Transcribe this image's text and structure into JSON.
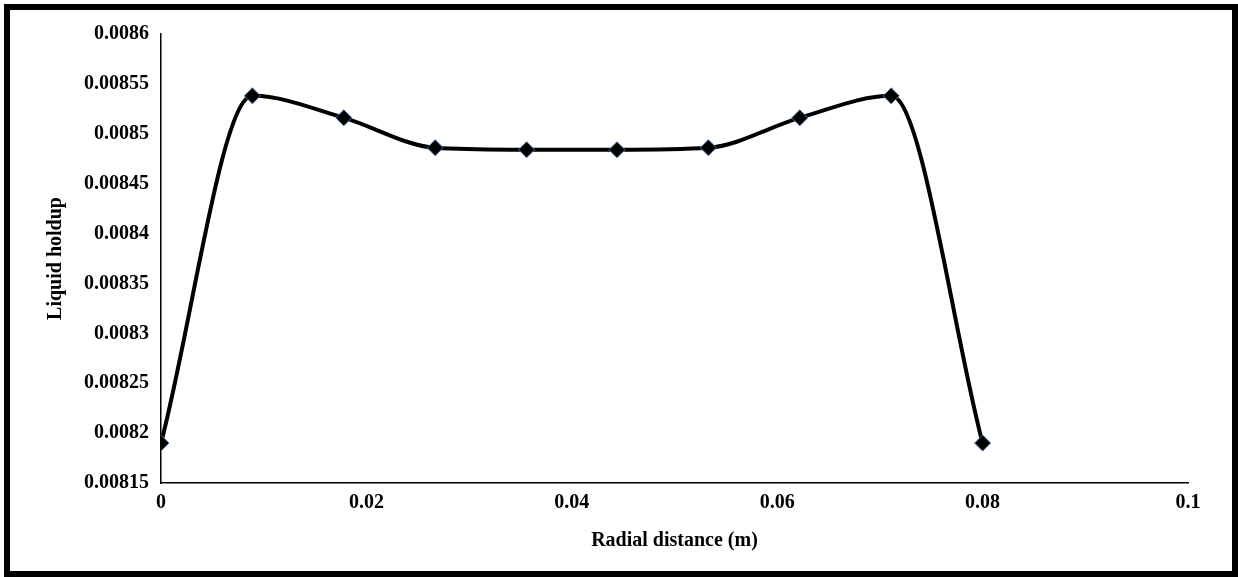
{
  "chart_data": {
    "type": "line",
    "xlabel": "Radial distance (m)",
    "ylabel": "Liquid holdup",
    "x": [
      0,
      0.0089,
      0.0178,
      0.0267,
      0.0356,
      0.0444,
      0.0533,
      0.0622,
      0.0711,
      0.08
    ],
    "series": [
      {
        "color": "#000000",
        "values": [
          0.00819,
          0.008538,
          0.008516,
          0.008486,
          0.008484,
          0.008484,
          0.008486,
          0.008516,
          0.008538,
          0.00819
        ]
      }
    ],
    "xlim": [
      0,
      0.1
    ],
    "xticks": [
      0,
      0.02,
      0.04,
      0.06,
      0.08,
      0.1
    ],
    "ylim": [
      0.00815,
      0.0086
    ],
    "yticks": [
      0.00815,
      0.0082,
      0.00825,
      0.0083,
      0.00835,
      0.0084,
      0.00845,
      0.0085,
      0.00855,
      0.0086
    ],
    "grid": false,
    "legend": false,
    "marker": "diamond",
    "line_style": "solid"
  }
}
